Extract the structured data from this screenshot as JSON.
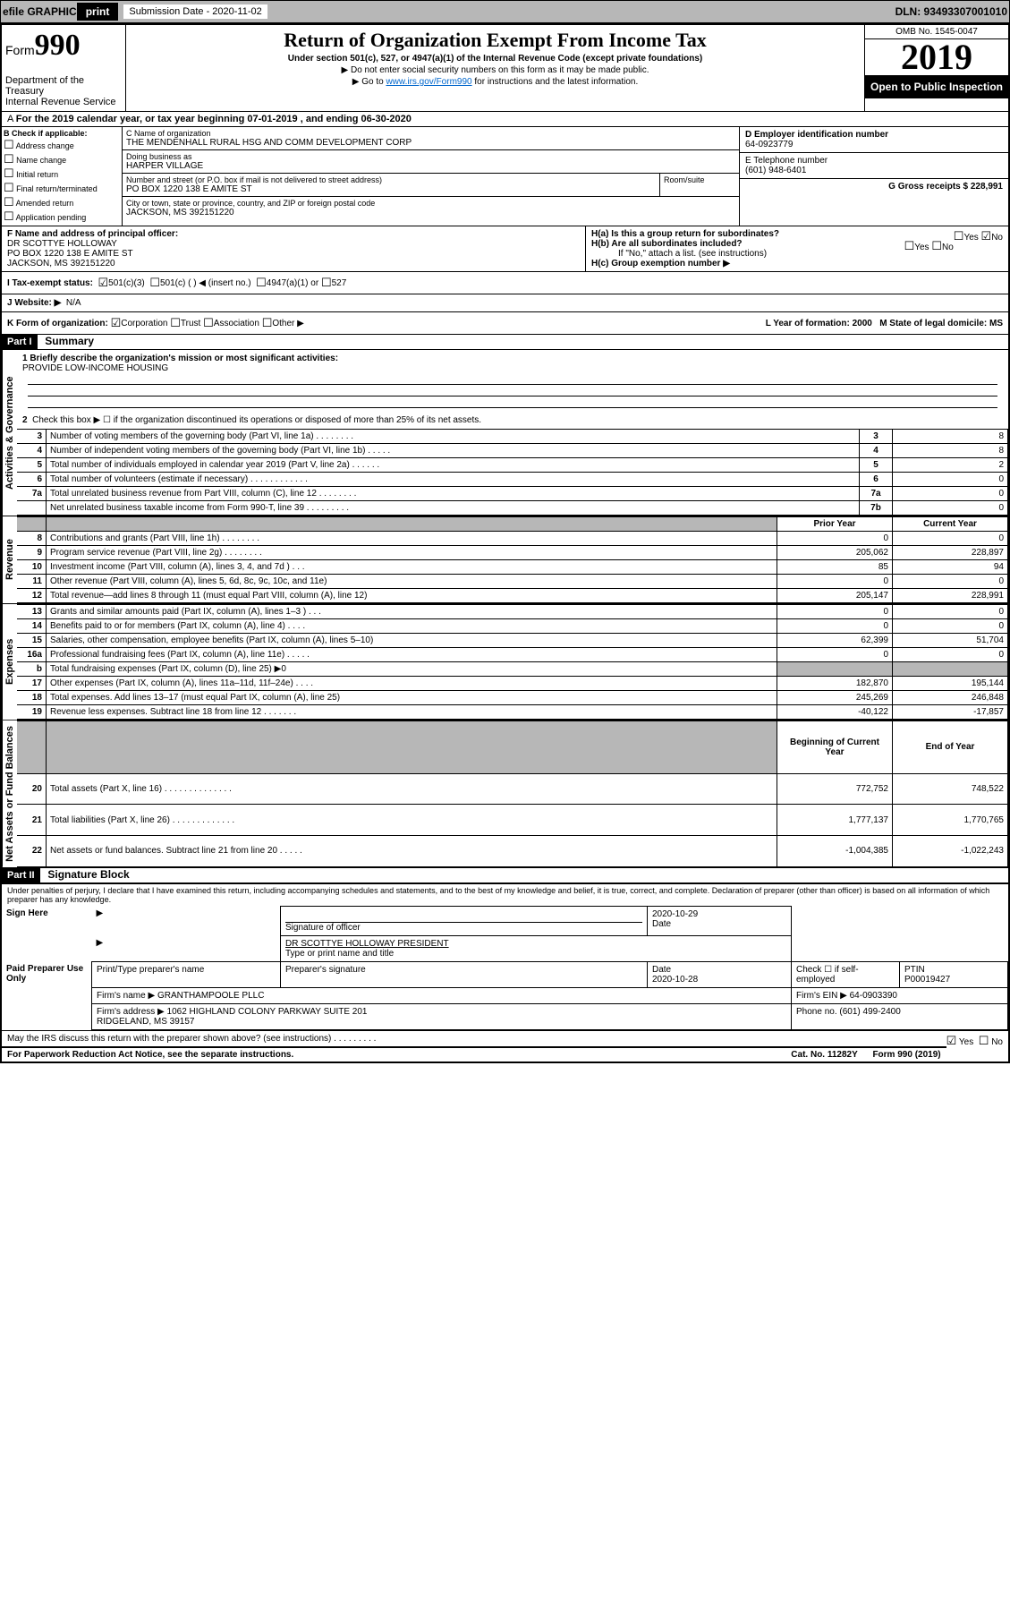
{
  "topbar": {
    "efile": "efile GRAPHIC",
    "print": "print",
    "sub_label": "Submission Date - 2020-11-02",
    "dln": "DLN: 93493307001010"
  },
  "header": {
    "form_word": "Form",
    "form_num": "990",
    "dept": "Department of the Treasury\nInternal Revenue Service",
    "title": "Return of Organization Exempt From Income Tax",
    "sub1": "Under section 501(c), 527, or 4947(a)(1) of the Internal Revenue Code (except private foundations)",
    "sub2": "▶ Do not enter social security numbers on this form as it may be made public.",
    "sub3_pre": "▶ Go to ",
    "sub3_link": "www.irs.gov/Form990",
    "sub3_post": " for instructions and the latest information.",
    "omb": "OMB No. 1545-0047",
    "year": "2019",
    "open": "Open to Public Inspection"
  },
  "taxyear": "For the 2019 calendar year, or tax year beginning 07-01-2019   , and ending 06-30-2020",
  "sectionA": {
    "label": "A",
    "check_label": "B Check if applicable:",
    "checks": [
      "Address change",
      "Name change",
      "Initial return",
      "Final return/terminated",
      "Amended return",
      "Application pending"
    ],
    "c_label": "C Name of organization",
    "org_name": "THE MENDENHALL RURAL HSG AND COMM DEVELOPMENT CORP",
    "dba_label": "Doing business as",
    "dba": "HARPER VILLAGE",
    "addr_label": "Number and street (or P.O. box if mail is not delivered to street address)",
    "addr": "PO BOX 1220 138 E AMITE ST",
    "room_label": "Room/suite",
    "city_label": "City or town, state or province, country, and ZIP or foreign postal code",
    "city": "JACKSON, MS  392151220",
    "d_label": "D Employer identification number",
    "ein": "64-0923779",
    "e_label": "E Telephone number",
    "phone": "(601) 948-6401",
    "g_label": "G Gross receipts $ 228,991"
  },
  "officer": {
    "f_label": "F  Name and address of principal officer:",
    "name": "DR SCOTTYE HOLLOWAY",
    "addr1": "PO BOX 1220 138 E AMITE ST",
    "addr2": "JACKSON, MS  392151220",
    "ha_label": "H(a)  Is this a group return for subordinates?",
    "hb_label": "H(b)  Are all subordinates included?",
    "hb_note": "If \"No,\" attach a list. (see instructions)",
    "hc_label": "H(c)  Group exemption number ▶",
    "yes": "Yes",
    "no": "No"
  },
  "status": {
    "i_label": "I  Tax-exempt status:",
    "opt1": "501(c)(3)",
    "opt2": "501(c) (  ) ◀ (insert no.)",
    "opt3": "4947(a)(1) or",
    "opt4": "527"
  },
  "website": {
    "j_label": "J  Website: ▶",
    "val": "N/A"
  },
  "korg": {
    "k_label": "K Form of organization:",
    "opts": [
      "Corporation",
      "Trust",
      "Association",
      "Other ▶"
    ],
    "l_label": "L Year of formation: 2000",
    "m_label": "M State of legal domicile: MS"
  },
  "part1": {
    "header": "Part I",
    "title": "Summary",
    "mission_label": "1  Briefly describe the organization's mission or most significant activities:",
    "mission": "PROVIDE LOW-INCOME HOUSING",
    "line2": "Check this box ▶ ☐  if the organization discontinued its operations or disposed of more than 25% of its net assets.",
    "lines_gov": [
      {
        "n": "3",
        "d": "Number of voting members of the governing body (Part VI, line 1a)  .   .   .   .   .   .   .   .",
        "b": "3",
        "v": "8"
      },
      {
        "n": "4",
        "d": "Number of independent voting members of the governing body (Part VI, line 1b)  .   .   .   .   .",
        "b": "4",
        "v": "8"
      },
      {
        "n": "5",
        "d": "Total number of individuals employed in calendar year 2019 (Part V, line 2a)  .   .   .   .   .   .",
        "b": "5",
        "v": "2"
      },
      {
        "n": "6",
        "d": "Total number of volunteers (estimate if necessary)  .   .   .   .   .   .   .   .   .   .   .   .",
        "b": "6",
        "v": "0"
      },
      {
        "n": "7a",
        "d": "Total unrelated business revenue from Part VIII, column (C), line 12  .   .   .   .   .   .   .   .",
        "b": "7a",
        "v": "0"
      },
      {
        "n": "",
        "d": "Net unrelated business taxable income from Form 990-T, line 39  .   .   .   .   .   .   .   .   .",
        "b": "7b",
        "v": "0"
      }
    ],
    "col_prior": "Prior Year",
    "col_curr": "Current Year",
    "lines_rev": [
      {
        "n": "8",
        "d": "Contributions and grants (Part VIII, line 1h)  .   .   .   .   .   .   .   .",
        "p": "0",
        "c": "0"
      },
      {
        "n": "9",
        "d": "Program service revenue (Part VIII, line 2g)  .   .   .   .   .   .   .   .",
        "p": "205,062",
        "c": "228,897"
      },
      {
        "n": "10",
        "d": "Investment income (Part VIII, column (A), lines 3, 4, and 7d )  .   .   .",
        "p": "85",
        "c": "94"
      },
      {
        "n": "11",
        "d": "Other revenue (Part VIII, column (A), lines 5, 6d, 8c, 9c, 10c, and 11e)",
        "p": "0",
        "c": "0"
      },
      {
        "n": "12",
        "d": "Total revenue—add lines 8 through 11 (must equal Part VIII, column (A), line 12)",
        "p": "205,147",
        "c": "228,991"
      }
    ],
    "lines_exp": [
      {
        "n": "13",
        "d": "Grants and similar amounts paid (Part IX, column (A), lines 1–3 )  .   .   .",
        "p": "0",
        "c": "0"
      },
      {
        "n": "14",
        "d": "Benefits paid to or for members (Part IX, column (A), line 4)  .   .   .   .",
        "p": "0",
        "c": "0"
      },
      {
        "n": "15",
        "d": "Salaries, other compensation, employee benefits (Part IX, column (A), lines 5–10)",
        "p": "62,399",
        "c": "51,704"
      },
      {
        "n": "16a",
        "d": "Professional fundraising fees (Part IX, column (A), line 11e)  .   .   .   .   .",
        "p": "0",
        "c": "0"
      },
      {
        "n": "b",
        "d": "Total fundraising expenses (Part IX, column (D), line 25) ▶0",
        "p": "",
        "c": "",
        "shaded": true
      },
      {
        "n": "17",
        "d": "Other expenses (Part IX, column (A), lines 11a–11d, 11f–24e)  .   .   .   .",
        "p": "182,870",
        "c": "195,144"
      },
      {
        "n": "18",
        "d": "Total expenses. Add lines 13–17 (must equal Part IX, column (A), line 25)",
        "p": "245,269",
        "c": "246,848"
      },
      {
        "n": "19",
        "d": "Revenue less expenses. Subtract line 18 from line 12  .   .   .   .   .   .   .",
        "p": "-40,122",
        "c": "-17,857"
      }
    ],
    "col_begin": "Beginning of Current Year",
    "col_end": "End of Year",
    "lines_net": [
      {
        "n": "20",
        "d": "Total assets (Part X, line 16)  .   .   .   .   .   .   .   .   .   .   .   .   .   .",
        "p": "772,752",
        "c": "748,522"
      },
      {
        "n": "21",
        "d": "Total liabilities (Part X, line 26)  .   .   .   .   .   .   .   .   .   .   .   .   .",
        "p": "1,777,137",
        "c": "1,770,765"
      },
      {
        "n": "22",
        "d": "Net assets or fund balances. Subtract line 21 from line 20  .   .   .   .   .",
        "p": "-1,004,385",
        "c": "-1,022,243"
      }
    ],
    "vert_gov": "Activities & Governance",
    "vert_rev": "Revenue",
    "vert_exp": "Expenses",
    "vert_net": "Net Assets or Fund Balances"
  },
  "part2": {
    "header": "Part II",
    "title": "Signature Block",
    "perjury": "Under penalties of perjury, I declare that I have examined this return, including accompanying schedules and statements, and to the best of my knowledge and belief, it is true, correct, and complete. Declaration of preparer (other than officer) is based on all information of which preparer has any knowledge.",
    "sign_here": "Sign Here",
    "sig_officer": "Signature of officer",
    "sig_date": "2020-10-29",
    "date_label": "Date",
    "officer_name": "DR SCOTTYE HOLLOWAY  PRESIDENT",
    "type_name": "Type or print name and title",
    "paid": "Paid Preparer Use Only",
    "prep_name_label": "Print/Type preparer's name",
    "prep_sig_label": "Preparer's signature",
    "prep_date": "2020-10-28",
    "check_self": "Check ☐ if self-employed",
    "ptin_label": "PTIN",
    "ptin": "P00019427",
    "firm_name_label": "Firm's name    ▶",
    "firm_name": "GRANTHAMPOOLE PLLC",
    "firm_ein_label": "Firm's EIN ▶",
    "firm_ein": "64-0903390",
    "firm_addr_label": "Firm's address ▶",
    "firm_addr": "1062 HIGHLAND COLONY PARKWAY SUITE 201\nRIDGELAND, MS  39157",
    "phone_label": "Phone no.",
    "phone": "(601) 499-2400",
    "discuss": "May the IRS discuss this return with the preparer shown above? (see instructions)  .   .   .   .   .   .   .   .   .",
    "yes": "Yes",
    "no": "No"
  },
  "footer": {
    "left": "For Paperwork Reduction Act Notice, see the separate instructions.",
    "mid": "Cat. No. 11282Y",
    "right": "Form 990 (2019)"
  }
}
